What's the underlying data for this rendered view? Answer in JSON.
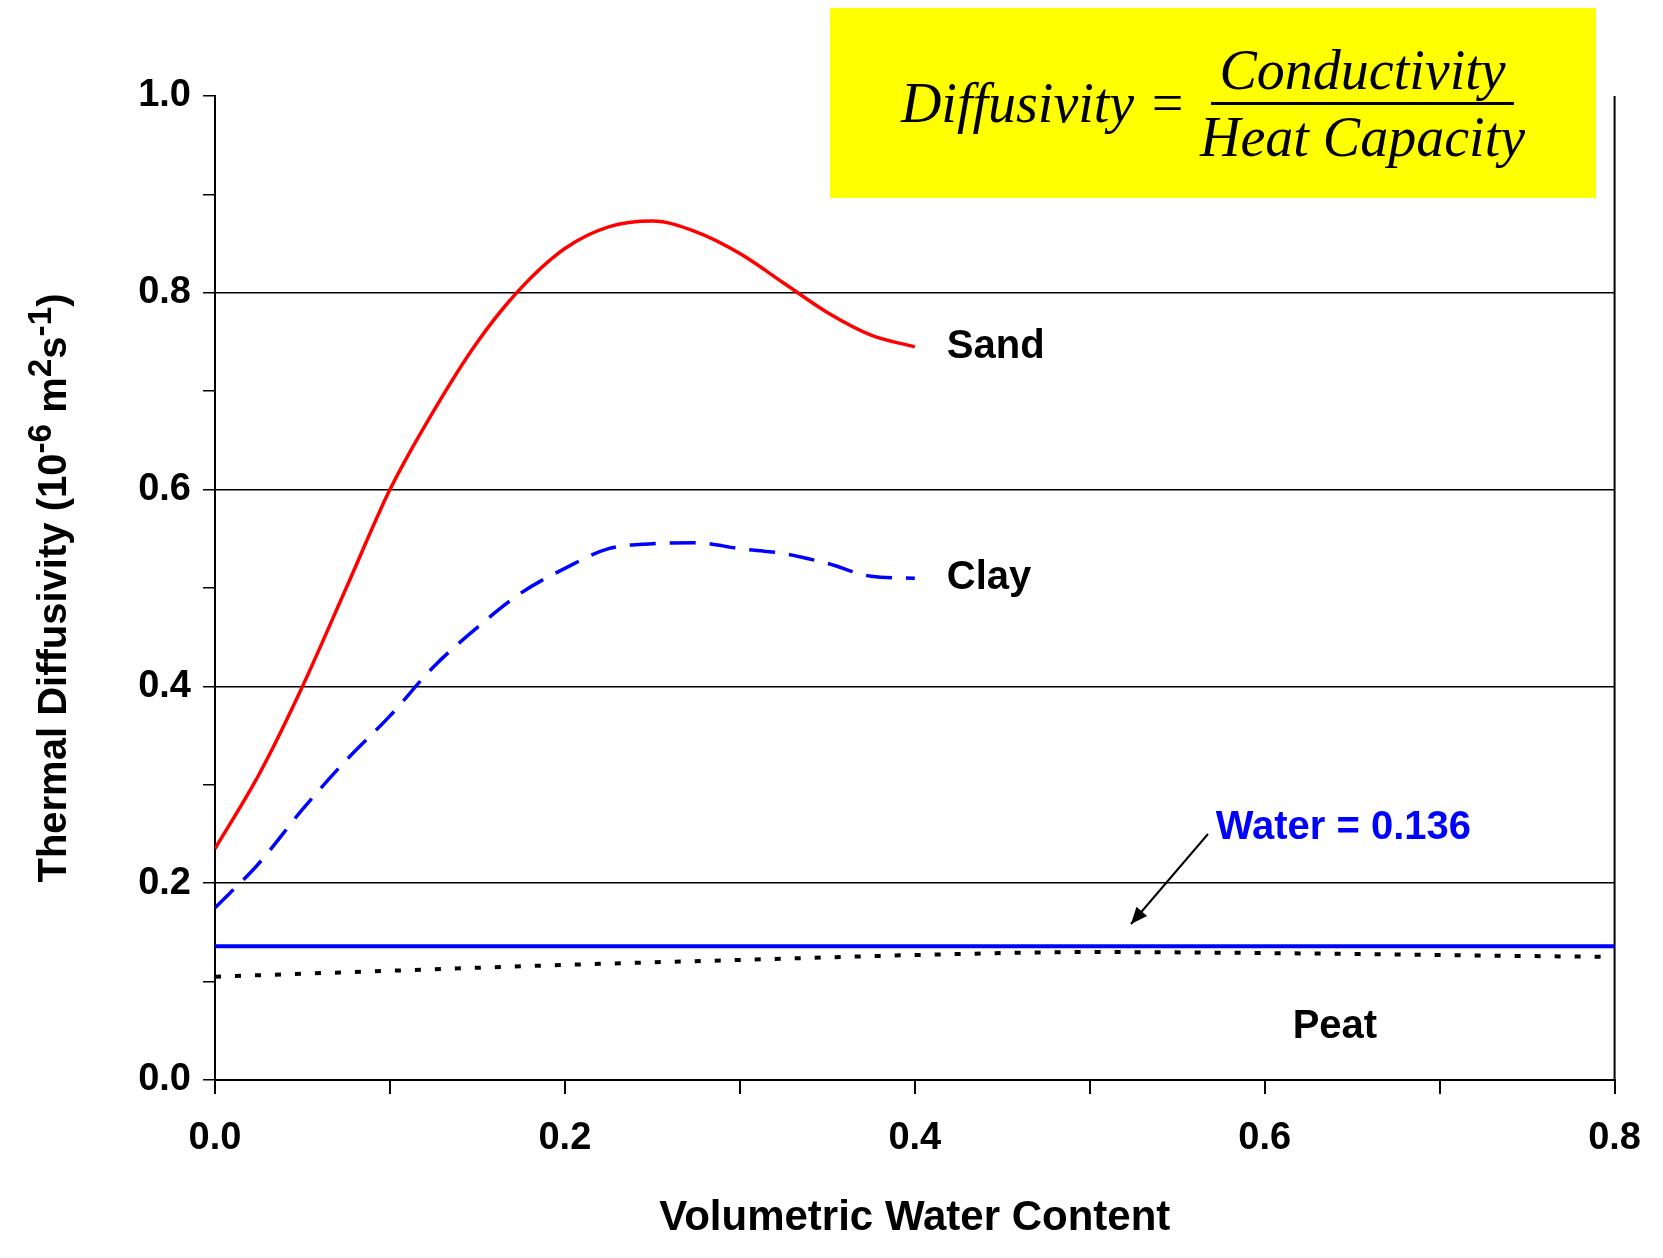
{
  "chart_data": {
    "type": "line",
    "xlabel": "Volumetric Water Content",
    "ylabel": "Thermal Diffusivity (10$^{-6}$ m$^{2}$s$^{-1}$)",
    "xlim": [
      0,
      0.8
    ],
    "ylim": [
      0,
      1.0
    ],
    "xticks": [
      {
        "value": 0,
        "label": "0.0"
      },
      {
        "value": 0.1,
        "label": null
      },
      {
        "value": 0.2,
        "label": "0.2"
      },
      {
        "value": 0.3,
        "label": null
      },
      {
        "value": 0.4,
        "label": "0.4"
      },
      {
        "value": 0.5,
        "label": null
      },
      {
        "value": 0.6,
        "label": "0.6"
      },
      {
        "value": 0.7,
        "label": null
      },
      {
        "value": 0.8,
        "label": "0.8"
      }
    ],
    "yticks": [
      {
        "value": 0,
        "label": "0.0"
      },
      {
        "value": 0.1,
        "label": null
      },
      {
        "value": 0.2,
        "label": "0.2"
      },
      {
        "value": 0.3,
        "label": null
      },
      {
        "value": 0.4,
        "label": "0.4"
      },
      {
        "value": 0.5,
        "label": null
      },
      {
        "value": 0.6,
        "label": "0.6"
      },
      {
        "value": 0.7,
        "label": null
      },
      {
        "value": 0.8,
        "label": "0.8"
      },
      {
        "value": 0.9,
        "label": null
      },
      {
        "value": 1.0,
        "label": "1.0"
      }
    ],
    "grid": "y",
    "legend": false,
    "marker": "none",
    "series": [
      {
        "name": "Sand",
        "color": "#ff0000",
        "line_style": "solid",
        "x": [
          0,
          0.025,
          0.05,
          0.075,
          0.1,
          0.125,
          0.15,
          0.175,
          0.2,
          0.225,
          0.25,
          0.275,
          0.3,
          0.325,
          0.35,
          0.375,
          0.4
        ],
        "values": [
          0.235,
          0.31,
          0.4,
          0.5,
          0.6,
          0.68,
          0.75,
          0.805,
          0.845,
          0.867,
          0.873,
          0.862,
          0.84,
          0.81,
          0.78,
          0.757,
          0.745
        ]
      },
      {
        "name": "Clay",
        "color": "#0000ff",
        "line_style": "dashed",
        "x": [
          0,
          0.025,
          0.05,
          0.075,
          0.1,
          0.125,
          0.15,
          0.175,
          0.2,
          0.225,
          0.25,
          0.275,
          0.3,
          0.325,
          0.35,
          0.375,
          0.4
        ],
        "values": [
          0.175,
          0.22,
          0.275,
          0.325,
          0.37,
          0.42,
          0.46,
          0.495,
          0.52,
          0.54,
          0.545,
          0.546,
          0.54,
          0.535,
          0.525,
          0.512,
          0.51
        ]
      },
      {
        "name": "Peat",
        "color": "#000000",
        "line_style": "dotted",
        "x": [
          0,
          0.1,
          0.2,
          0.3,
          0.4,
          0.5,
          0.6,
          0.7,
          0.8
        ],
        "values": [
          0.105,
          0.111,
          0.117,
          0.122,
          0.127,
          0.13,
          0.129,
          0.127,
          0.125
        ]
      }
    ],
    "ref_lines": [
      {
        "axis": "y",
        "value": 0.136,
        "label": "Water = 0.136",
        "color": "#0000ff",
        "line_style": "solid"
      }
    ],
    "annotations": [
      "Diffusivity =",
      "Conductivity",
      "Heat Capacity"
    ]
  }
}
